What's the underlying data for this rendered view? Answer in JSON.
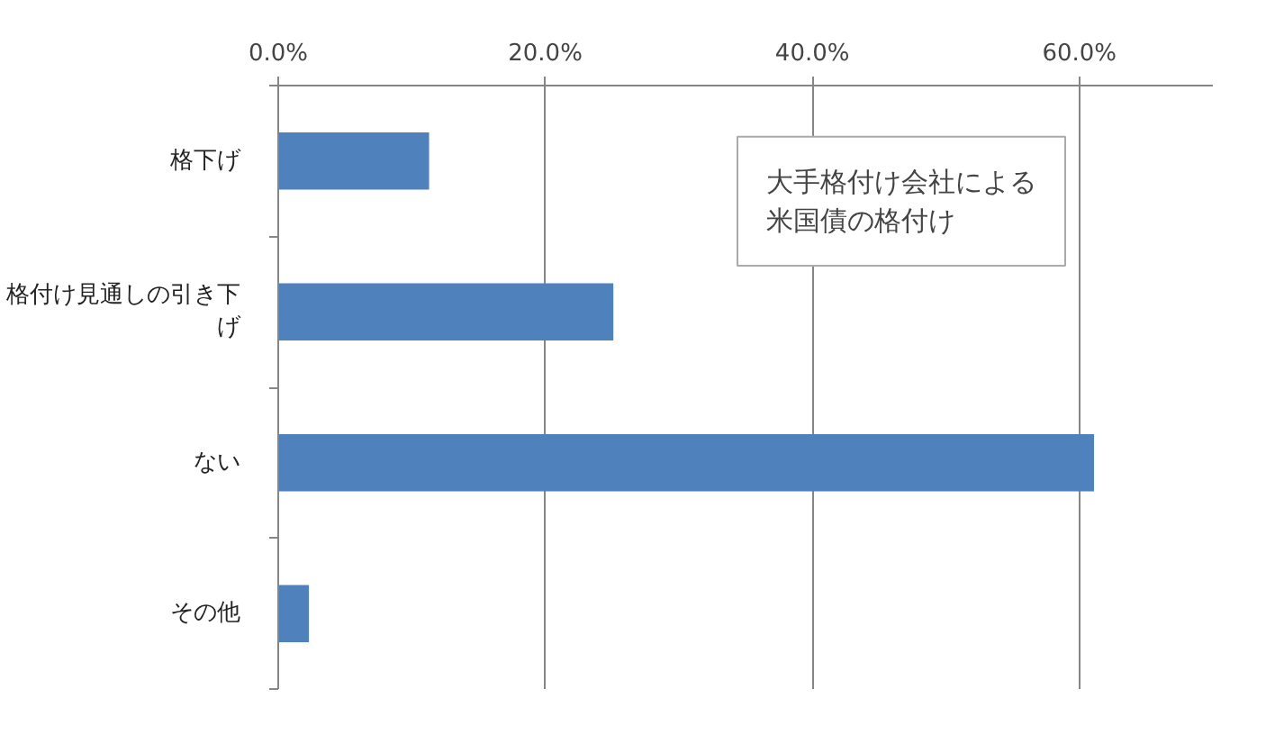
{
  "chart_data": {
    "type": "bar",
    "orientation": "horizontal",
    "title": "大手格付け会社による米国債の格付け",
    "categories": [
      "格下げ",
      "格付け見通しの引き下げ",
      "ない",
      "その他"
    ],
    "values": [
      11.3,
      25.1,
      61.1,
      2.3
    ],
    "color": "#4f81bd",
    "xlim": [
      0,
      70
    ],
    "xticks": [
      {
        "value": 0,
        "label": "0.0%"
      },
      {
        "value": 20,
        "label": "20.0%"
      },
      {
        "value": 40,
        "label": "40.0%"
      },
      {
        "value": 60,
        "label": "60.0%"
      }
    ],
    "grid": "x"
  }
}
